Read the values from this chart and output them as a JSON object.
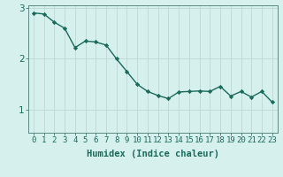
{
  "x": [
    0,
    1,
    2,
    3,
    4,
    5,
    6,
    7,
    8,
    9,
    10,
    11,
    12,
    13,
    14,
    15,
    16,
    17,
    18,
    19,
    20,
    21,
    22,
    23
  ],
  "y": [
    2.9,
    2.88,
    2.72,
    2.6,
    2.22,
    2.35,
    2.33,
    2.27,
    2.0,
    1.75,
    1.5,
    1.36,
    1.28,
    1.22,
    1.35,
    1.36,
    1.37,
    1.36,
    1.46,
    1.27,
    1.36,
    1.25,
    1.36,
    1.15
  ],
  "line_color": "#1a6b5a",
  "bg_color": "#d6f0ee",
  "grid_color": "#c0d8d4",
  "axis_color": "#5a8a84",
  "xlabel": "Humidex (Indice chaleur)",
  "yticks": [
    1,
    2,
    3
  ],
  "xticks": [
    0,
    1,
    2,
    3,
    4,
    5,
    6,
    7,
    8,
    9,
    10,
    11,
    12,
    13,
    14,
    15,
    16,
    17,
    18,
    19,
    20,
    21,
    22,
    23
  ],
  "xtick_labels": [
    "0",
    "1",
    "2",
    "3",
    "4",
    "5",
    "6",
    "7",
    "8",
    "9",
    "10",
    "11",
    "12",
    "13",
    "14",
    "15",
    "16",
    "17",
    "18",
    "19",
    "20",
    "21",
    "22",
    "23"
  ],
  "ylim": [
    0.55,
    3.05
  ],
  "xlim": [
    -0.5,
    23.5
  ],
  "marker": "D",
  "marker_size": 2.2,
  "line_width": 1.0,
  "tick_fontsize": 6.5,
  "xlabel_fontsize": 7.5
}
